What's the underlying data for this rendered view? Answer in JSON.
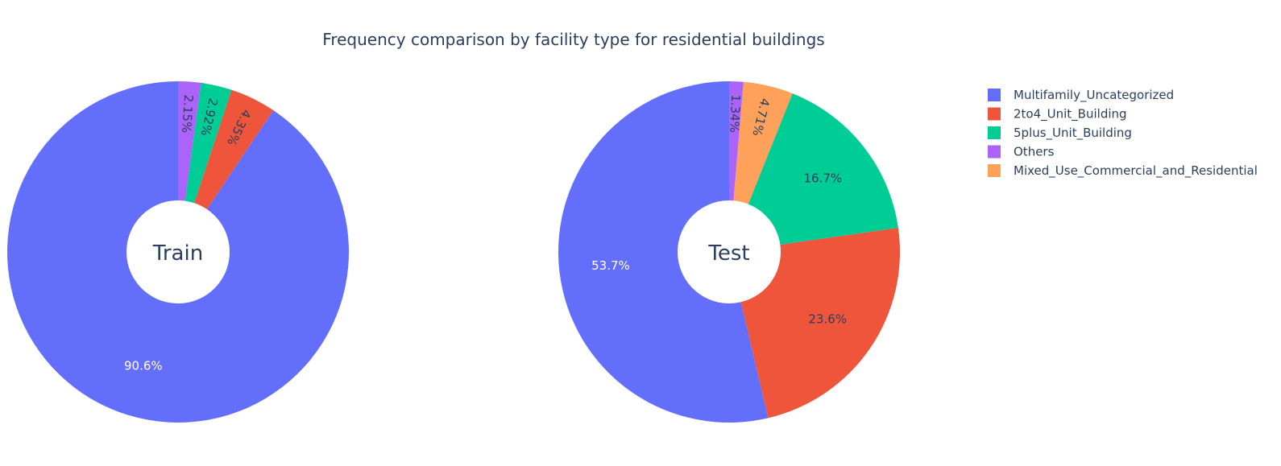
{
  "colors": {
    "Multifamily_Uncategorized": "#636efa",
    "2to4_Unit_Building": "#EF553B",
    "5plus_Unit_Building": "#00cc96",
    "Others": "#ab63fa",
    "Mixed_Use_Commercial_and_Residential": "#FFA15A",
    "text": "#2a3f5f"
  },
  "chart_data": {
    "type": "pie",
    "title": "Frequency comparison by facility type for residential buildings",
    "legend": {
      "placement": "top-right",
      "entries": [
        "Multifamily_Uncategorized",
        "2to4_Unit_Building",
        "5plus_Unit_Building",
        "Others",
        "Mixed_Use_Commercial_and_Residential"
      ]
    },
    "pies": [
      {
        "hole_label": "Train",
        "slices": [
          {
            "name": "Multifamily_Uncategorized",
            "value": 90.6,
            "label": "90.6%"
          },
          {
            "name": "2to4_Unit_Building",
            "value": 4.35,
            "label": "4.35%"
          },
          {
            "name": "5plus_Unit_Building",
            "value": 2.92,
            "label": "2.92%"
          },
          {
            "name": "Others",
            "value": 2.15,
            "label": "2.15%"
          }
        ]
      },
      {
        "hole_label": "Test",
        "slices": [
          {
            "name": "Multifamily_Uncategorized",
            "value": 53.7,
            "label": "53.7%"
          },
          {
            "name": "2to4_Unit_Building",
            "value": 23.6,
            "label": "23.6%"
          },
          {
            "name": "5plus_Unit_Building",
            "value": 16.7,
            "label": "16.7%"
          },
          {
            "name": "Mixed_Use_Commercial_and_Residential",
            "value": 4.71,
            "label": "4.71%"
          },
          {
            "name": "Others",
            "value": 1.34,
            "label": "1.34%"
          }
        ]
      }
    ]
  }
}
